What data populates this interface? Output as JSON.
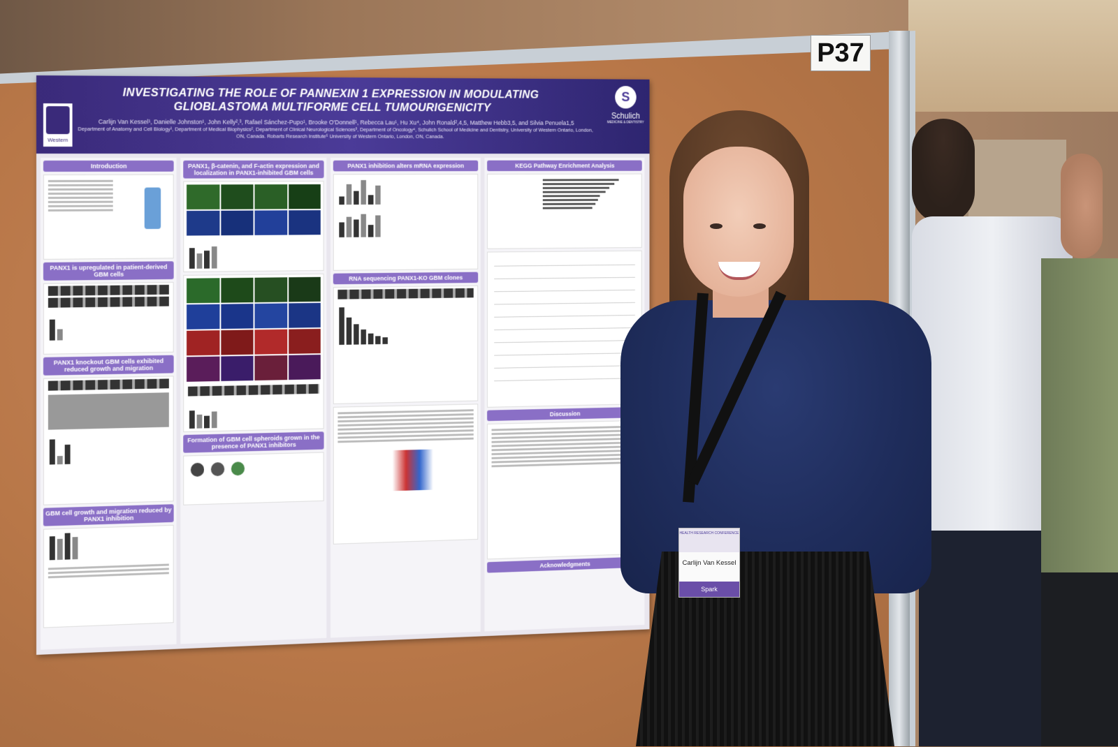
{
  "booth": {
    "number": "P37"
  },
  "poster": {
    "title": "INVESTIGATING THE ROLE OF PANNEXIN 1 EXPRESSION IN MODULATING GLIOBLASTOMA MULTIFORME CELL TUMOURIGENICITY",
    "authors": "Carlijn Van Kessel¹, Danielle Johnston¹, John Kelly²,³, Rafael Sánchez-Pupo¹, Brooke O'Donnell¹, Rebecca Lau¹, Hu Xu⁴, John Ronald²,4,5, Matthew Hebb3,5, and Silvia Penuela1,5",
    "affiliations": "Department of Anatomy and Cell Biology¹, Department of Medical Biophysics², Department of Clinical Neurological Sciences³, Department of Oncology⁴, Schulich School of Medicine and Dentistry, University of Western Ontario, London, ON, Canada. Robarts Research Institute⁵ University of Western Ontario, London, ON, Canada.",
    "logo_left": "Western",
    "logo_right": "Schulich",
    "logo_right_sub": "MEDICINE & DENTISTRY",
    "sections": {
      "introduction": "Introduction",
      "panx1_upregulated": "PANX1 is upregulated in patient-derived GBM cells",
      "panx1_knockout": "PANX1 knockout GBM cells exhibited reduced growth and migration",
      "gbm_growth": "GBM cell growth and migration reduced by PANX1 inhibition",
      "panx1_beta_catenin": "PANX1, β-catenin, and F-actin expression and localization in PANX1-inhibited GBM cells",
      "spheroids": "Formation of GBM cell spheroids grown in the presence of PANX1 inhibitors",
      "mrna": "PANX1 inhibition alters mRNA expression",
      "rna_seq": "RNA sequencing PANX1-KO GBM clones",
      "kegg": "KEGG Pathway Enrichment Analysis",
      "discussion": "Discussion",
      "acknowledgments": "Acknowledgments"
    }
  },
  "badge": {
    "name": "Carlijn Van Kessel",
    "event": "HEALTH RESEARCH CONFERENCE",
    "brand": "Spark"
  },
  "colors": {
    "poster_header": "#3a2a7a",
    "section_header": "#8a6fc6",
    "corkboard": "#b87748",
    "sweater": "#1f2d5c"
  }
}
